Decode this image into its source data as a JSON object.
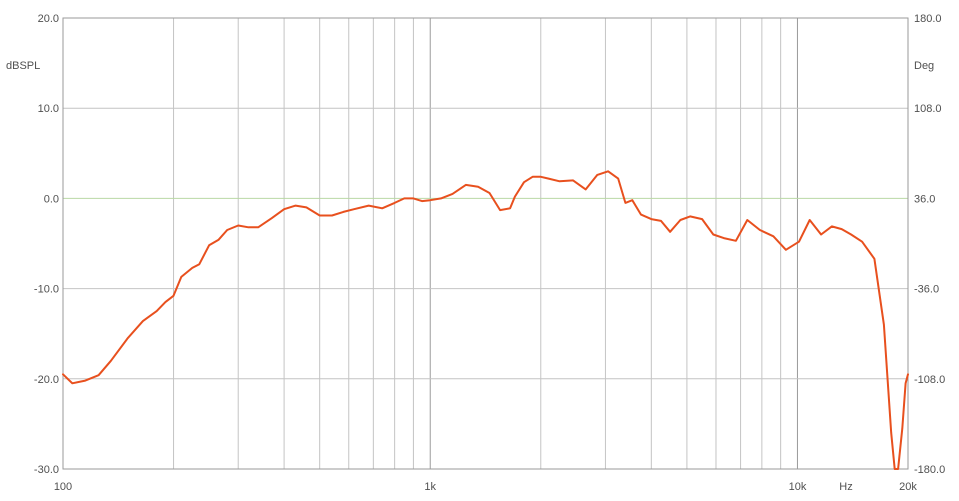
{
  "chart_data": {
    "type": "line",
    "xscale": "log",
    "xlim": [
      100,
      20000
    ],
    "ylim": [
      -30,
      20
    ],
    "y2lim": [
      -180,
      180
    ],
    "ylabel": "dBSPL",
    "y2label": "Deg",
    "xunit": "Hz",
    "xtick_labels": [
      {
        "value": 100,
        "label": "100"
      },
      {
        "value": 1000,
        "label": "1k"
      },
      {
        "value": 10000,
        "label": "10k"
      },
      {
        "value": 20000,
        "label": "20k"
      }
    ],
    "yticks": [
      {
        "value": 20,
        "label": "20.0"
      },
      {
        "value": 10,
        "label": "10.0"
      },
      {
        "value": 0,
        "label": "0.0"
      },
      {
        "value": -10,
        "label": "-10.0"
      },
      {
        "value": -20,
        "label": "-20.0"
      },
      {
        "value": -30,
        "label": "-30.0"
      }
    ],
    "y2ticks": [
      {
        "value": 180,
        "label": "180.0"
      },
      {
        "value": 108,
        "label": "108.0"
      },
      {
        "value": 36,
        "label": "36.0"
      },
      {
        "value": -36,
        "label": "-36.0"
      },
      {
        "value": -108,
        "label": "-108.0"
      },
      {
        "value": -180,
        "label": "-180.0"
      }
    ],
    "minor_x_gridlines": [
      200,
      300,
      400,
      500,
      600,
      700,
      800,
      900,
      2000,
      3000,
      4000,
      5000,
      6000,
      7000,
      8000,
      9000
    ],
    "grid": true,
    "zero_line": 0,
    "series": [
      {
        "color": "#e8501e",
        "x": [
          100,
          106,
          115,
          125,
          135,
          150,
          165,
          180,
          190,
          200,
          210,
          225,
          235,
          250,
          265,
          280,
          300,
          320,
          340,
          370,
          400,
          430,
          460,
          500,
          540,
          580,
          620,
          680,
          740,
          800,
          850,
          900,
          950,
          1000,
          1070,
          1150,
          1250,
          1350,
          1450,
          1550,
          1650,
          1700,
          1800,
          1900,
          2000,
          2100,
          2250,
          2450,
          2650,
          2850,
          3050,
          3250,
          3400,
          3550,
          3750,
          4000,
          4250,
          4500,
          4800,
          5100,
          5500,
          5900,
          6300,
          6800,
          7300,
          7900,
          8600,
          9300,
          10100,
          10800,
          11600,
          12400,
          13200,
          14000,
          15000,
          16200,
          17200,
          18000,
          18400,
          18800,
          19300,
          19700,
          20000
        ],
        "y": [
          -19.5,
          -20.5,
          -20.2,
          -19.6,
          -18,
          -15.5,
          -13.6,
          -12.5,
          -11.5,
          -10.8,
          -8.7,
          -7.7,
          -7.3,
          -5.2,
          -4.6,
          -3.5,
          -3.0,
          -3.2,
          -3.2,
          -2.2,
          -1.2,
          -0.8,
          -1.0,
          -1.9,
          -1.9,
          -1.5,
          -1.2,
          -0.8,
          -1.1,
          -0.5,
          0,
          0,
          -0.3,
          -0.2,
          0,
          0.5,
          1.5,
          1.3,
          0.6,
          -1.3,
          -1.1,
          0.2,
          1.8,
          2.4,
          2.4,
          2.2,
          1.9,
          2.0,
          1.0,
          2.6,
          3.0,
          2.2,
          -0.5,
          -0.2,
          -1.8,
          -2.3,
          -2.5,
          -3.7,
          -2.4,
          -2.0,
          -2.3,
          -4.0,
          -4.4,
          -4.7,
          -2.4,
          -3.5,
          -4.2,
          -5.7,
          -4.8,
          -2.4,
          -4.0,
          -3.1,
          -3.4,
          -4.0,
          -4.8,
          -6.7,
          -14,
          -26,
          -30,
          -30,
          -25.5,
          -20.5,
          -19.5
        ]
      }
    ]
  }
}
